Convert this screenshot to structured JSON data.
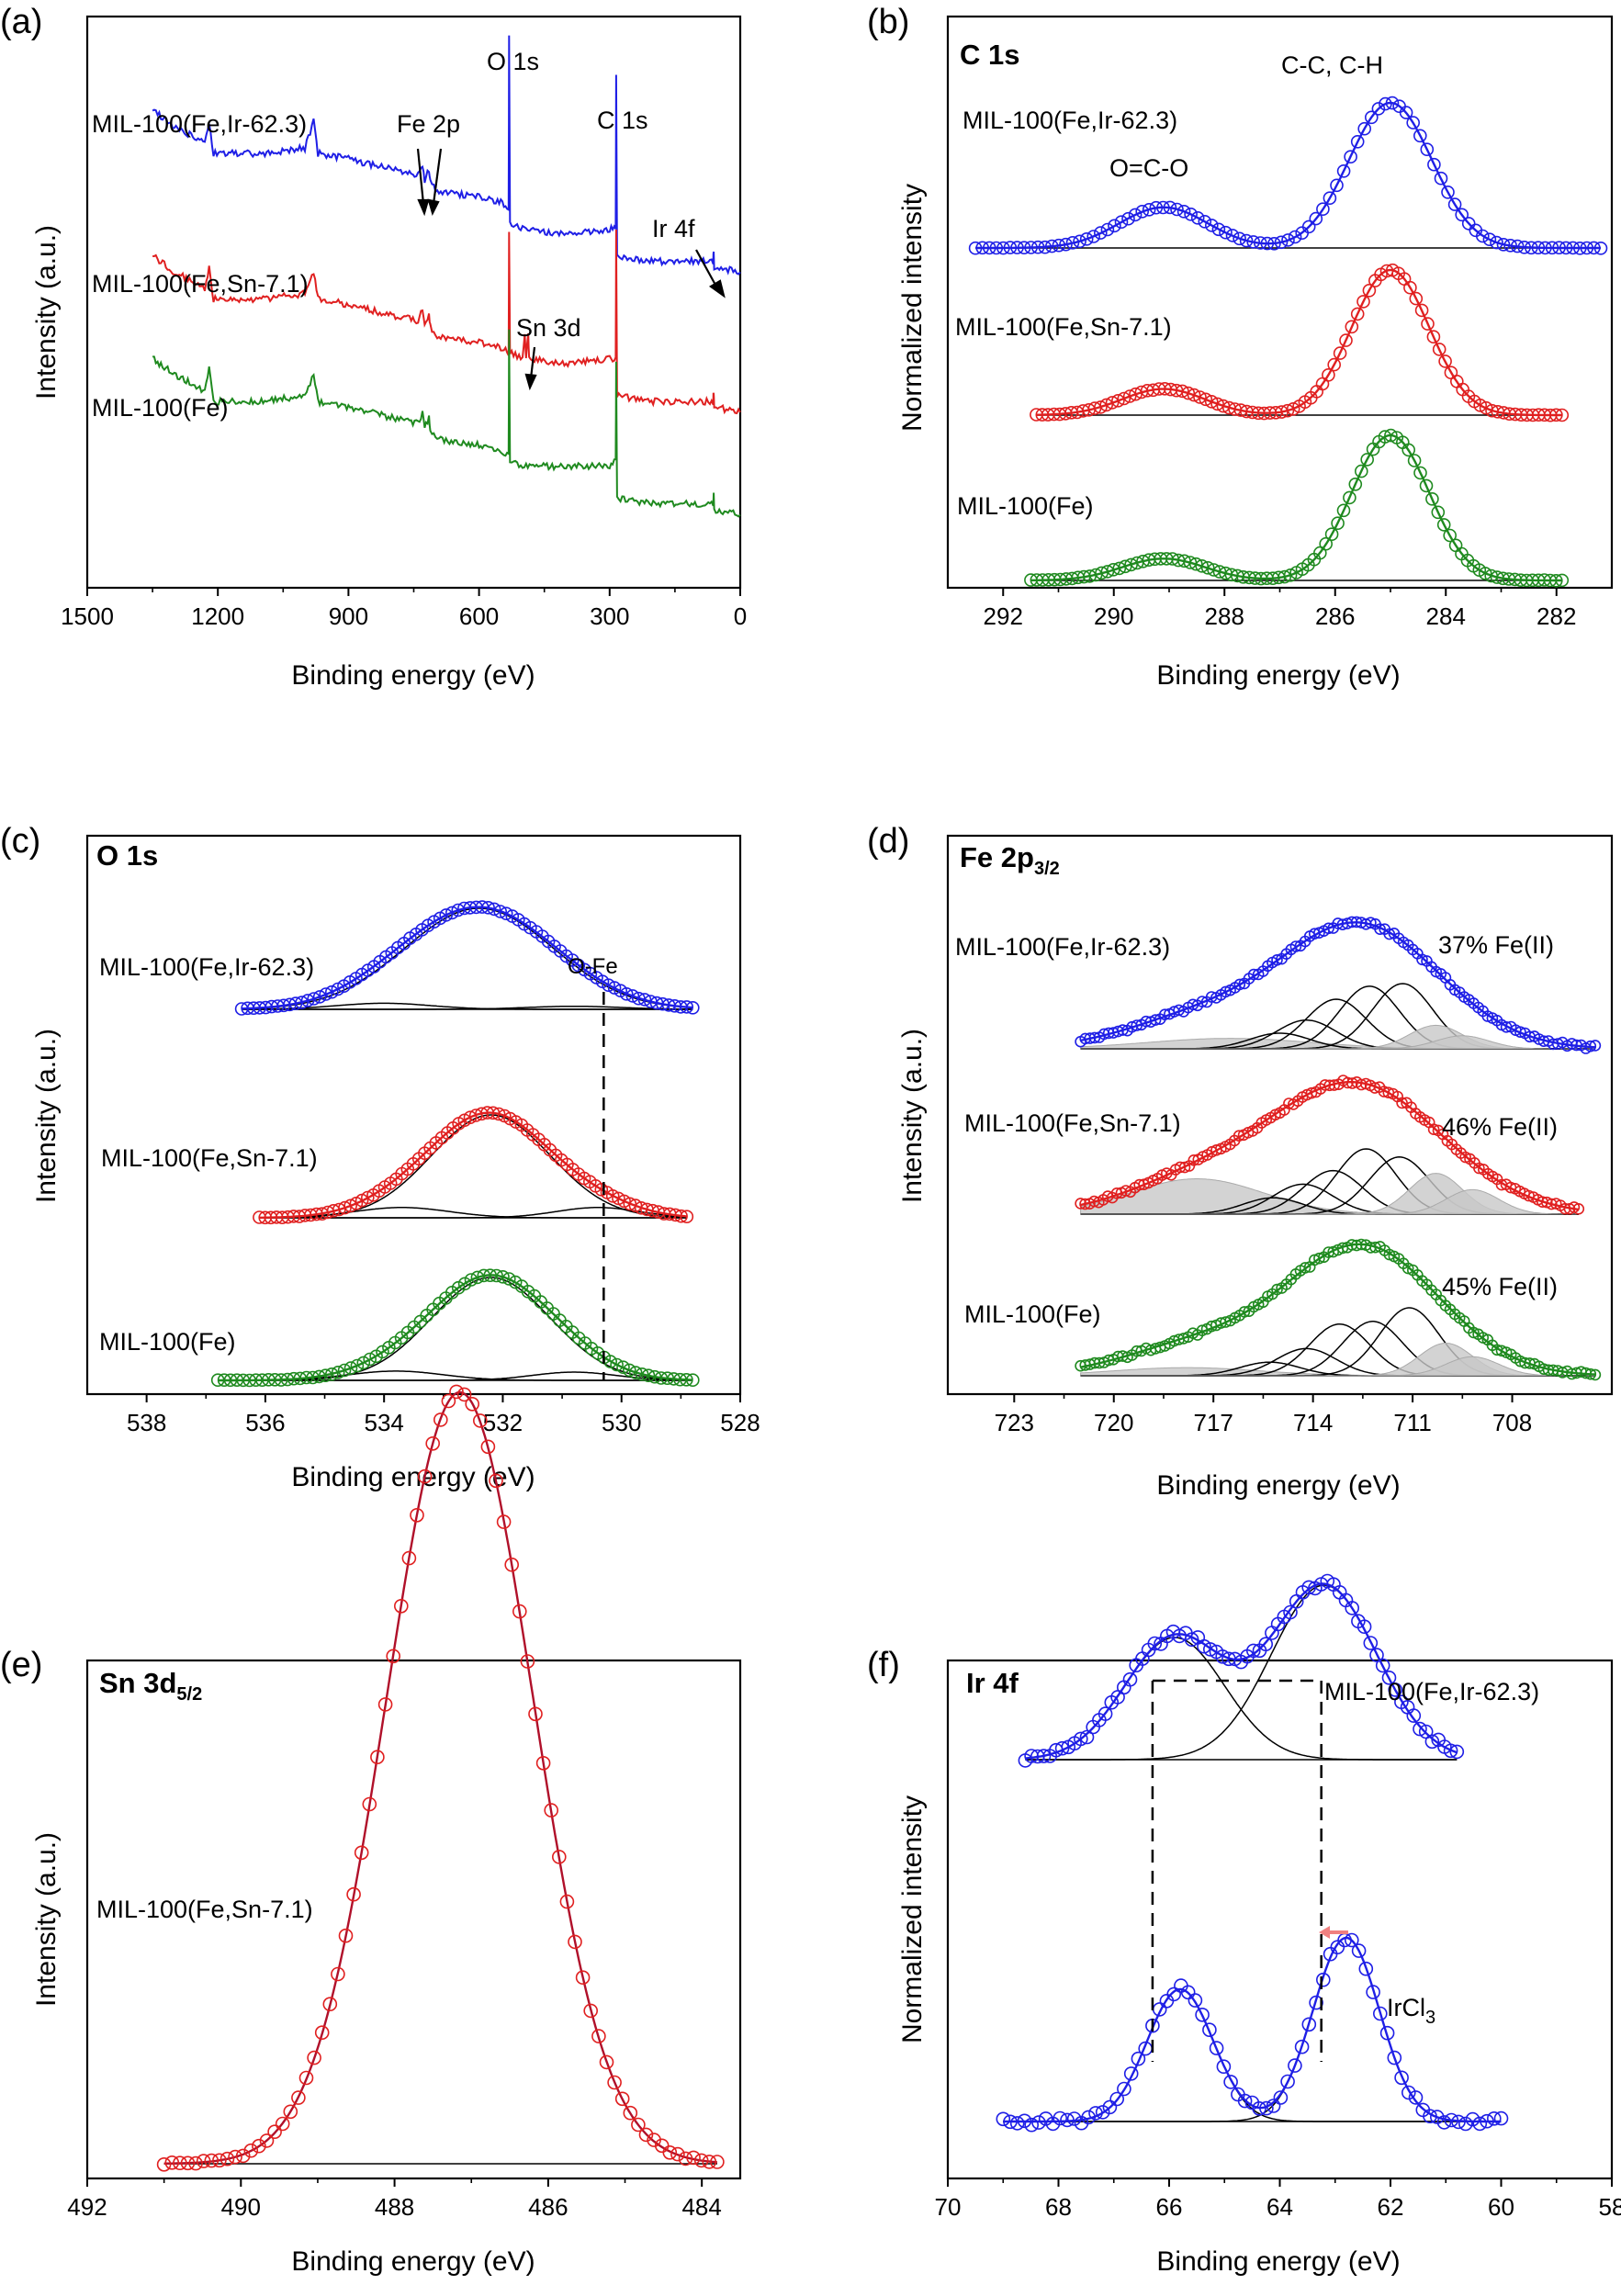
{
  "figure": {
    "colors": {
      "blue": "#1f1fe6",
      "red": "#e02020",
      "green": "#1f8a1f",
      "black": "#000000",
      "darkred": "#b0102a",
      "fit_gray": "#c8c8c8",
      "arrow_salmon": "#f08080"
    }
  },
  "chart_data": [
    {
      "panel": "(a)",
      "type": "line",
      "xlabel": "Binding energy (eV)",
      "ylabel": "Intensity (a.u.)",
      "xlim": [
        1500,
        0
      ],
      "x_reversed": true,
      "xticks": [
        "1500",
        "1200",
        "900",
        "600",
        "300",
        "0"
      ],
      "series": [
        {
          "name": "MIL-100(Fe,Ir-62.3)",
          "color": "#1f1fe6",
          "points": [
            [
              1350,
              0.86
            ],
            [
              1300,
              0.83
            ],
            [
              1230,
              0.8
            ],
            [
              1220,
              0.84
            ],
            [
              1210,
              0.78
            ],
            [
              1100,
              0.78
            ],
            [
              1000,
              0.79
            ],
            [
              980,
              0.84
            ],
            [
              970,
              0.78
            ],
            [
              900,
              0.77
            ],
            [
              800,
              0.75
            ],
            [
              740,
              0.74
            ],
            [
              730,
              0.76
            ],
            [
              725,
              0.73
            ],
            [
              715,
              0.75
            ],
            [
              712,
              0.73
            ],
            [
              700,
              0.71
            ],
            [
              600,
              0.7
            ],
            [
              550,
              0.69
            ],
            [
              532,
              0.68
            ],
            [
              531,
              1.0
            ],
            [
              529,
              0.65
            ],
            [
              500,
              0.64
            ],
            [
              400,
              0.63
            ],
            [
              300,
              0.64
            ],
            [
              286,
              0.64
            ],
            [
              285,
              0.93
            ],
            [
              283,
              0.59
            ],
            [
              200,
              0.58
            ],
            [
              100,
              0.58
            ],
            [
              62,
              0.58
            ],
            [
              61,
              0.6
            ],
            [
              60,
              0.57
            ],
            [
              0,
              0.56
            ]
          ]
        },
        {
          "name": "MIL-100(Fe,Sn-7.1)",
          "color": "#e02020",
          "points": [
            [
              1350,
              0.59
            ],
            [
              1300,
              0.56
            ],
            [
              1230,
              0.53
            ],
            [
              1220,
              0.57
            ],
            [
              1210,
              0.51
            ],
            [
              1100,
              0.51
            ],
            [
              1000,
              0.52
            ],
            [
              980,
              0.56
            ],
            [
              970,
              0.51
            ],
            [
              900,
              0.5
            ],
            [
              800,
              0.48
            ],
            [
              740,
              0.47
            ],
            [
              730,
              0.49
            ],
            [
              725,
              0.46
            ],
            [
              715,
              0.48
            ],
            [
              712,
              0.46
            ],
            [
              700,
              0.44
            ],
            [
              600,
              0.43
            ],
            [
              550,
              0.42
            ],
            [
              532,
              0.41
            ],
            [
              531,
              0.64
            ],
            [
              529,
              0.41
            ],
            [
              500,
              0.4
            ],
            [
              495,
              0.44
            ],
            [
              492,
              0.4
            ],
            [
              487,
              0.45
            ],
            [
              485,
              0.4
            ],
            [
              400,
              0.39
            ],
            [
              300,
              0.4
            ],
            [
              286,
              0.4
            ],
            [
              285,
              0.64
            ],
            [
              283,
              0.33
            ],
            [
              200,
              0.32
            ],
            [
              100,
              0.32
            ],
            [
              62,
              0.32
            ],
            [
              61,
              0.34
            ],
            [
              60,
              0.31
            ],
            [
              0,
              0.3
            ]
          ]
        },
        {
          "name": "MIL-100(Fe)",
          "color": "#1f8a1f",
          "points": [
            [
              1350,
              0.4
            ],
            [
              1300,
              0.37
            ],
            [
              1230,
              0.34
            ],
            [
              1220,
              0.38
            ],
            [
              1210,
              0.32
            ],
            [
              1100,
              0.32
            ],
            [
              1000,
              0.33
            ],
            [
              980,
              0.37
            ],
            [
              970,
              0.32
            ],
            [
              900,
              0.31
            ],
            [
              800,
              0.29
            ],
            [
              740,
              0.28
            ],
            [
              730,
              0.3
            ],
            [
              725,
              0.27
            ],
            [
              715,
              0.29
            ],
            [
              712,
              0.27
            ],
            [
              700,
              0.25
            ],
            [
              600,
              0.24
            ],
            [
              550,
              0.23
            ],
            [
              532,
              0.22
            ],
            [
              531,
              0.45
            ],
            [
              529,
              0.21
            ],
            [
              500,
              0.2
            ],
            [
              400,
              0.2
            ],
            [
              300,
              0.2
            ],
            [
              286,
              0.21
            ],
            [
              285,
              0.39
            ],
            [
              283,
              0.14
            ],
            [
              200,
              0.13
            ],
            [
              100,
              0.13
            ],
            [
              62,
              0.13
            ],
            [
              61,
              0.15
            ],
            [
              60,
              0.12
            ],
            [
              0,
              0.11
            ]
          ]
        }
      ],
      "labels": [
        "MIL-100(Fe,Ir-62.3)",
        "MIL-100(Fe,Sn-7.1)",
        "MIL-100(Fe)"
      ],
      "annotations": [
        "O 1s",
        "C 1s",
        "Fe 2p",
        "Ir 4f",
        "Sn 3d"
      ]
    },
    {
      "panel": "(b)",
      "type": "scatter",
      "title": "C 1s",
      "xlabel": "Binding energy (eV)",
      "ylabel": "Normalized intensity",
      "xlim": [
        293,
        281
      ],
      "x_reversed": true,
      "xticks": [
        "292",
        "290",
        "288",
        "286",
        "284",
        "282"
      ],
      "peaks_eV": [
        {
          "label": "O=C-O",
          "x": 289.1
        },
        {
          "label": "C-C, C-H",
          "x": 285.0
        }
      ],
      "series": [
        {
          "name": "MIL-100(Fe,Ir-62.3)",
          "color": "#1f1fe6",
          "x_range": [
            292.5,
            281.2
          ],
          "peaks": [
            [
              289.1,
              0.28,
              0.8
            ],
            [
              285.0,
              1.0,
              0.75
            ]
          ]
        },
        {
          "name": "MIL-100(Fe,Sn-7.1)",
          "color": "#e02020",
          "x_range": [
            291.4,
            281.9
          ],
          "peaks": [
            [
              289.1,
              0.18,
              0.75
            ],
            [
              285.0,
              1.0,
              0.7
            ]
          ]
        },
        {
          "name": "MIL-100(Fe)",
          "color": "#1f8a1f",
          "x_range": [
            291.5,
            281.9
          ],
          "peaks": [
            [
              289.1,
              0.15,
              0.75
            ],
            [
              285.0,
              1.0,
              0.7
            ]
          ]
        }
      ],
      "annotations": [
        "C-C, C-H",
        "O=C-O"
      ]
    },
    {
      "panel": "(c)",
      "type": "scatter",
      "title": "O 1s",
      "xlabel": "Binding energy (eV)",
      "ylabel": "Intensity (a.u.)",
      "xlim": [
        539,
        528
      ],
      "x_reversed": true,
      "xticks": [
        "538",
        "536",
        "534",
        "532",
        "530",
        "528"
      ],
      "reference_line_eV": 530.3,
      "series": [
        {
          "name": "MIL-100(Fe,Ir-62.3)",
          "color": "#1f1fe6",
          "x_range": [
            536.4,
            528.8
          ],
          "peaks": [
            [
              532.4,
              1.0,
              1.25
            ],
            [
              534.0,
              0.06,
              0.8
            ],
            [
              530.8,
              0.03,
              0.8
            ]
          ]
        },
        {
          "name": "MIL-100(Fe,Sn-7.1)",
          "color": "#e02020",
          "x_range": [
            536.1,
            528.9
          ],
          "peaks": [
            [
              532.2,
              1.0,
              1.0
            ],
            [
              533.7,
              0.1,
              0.8
            ],
            [
              530.4,
              0.1,
              0.7
            ]
          ]
        },
        {
          "name": "MIL-100(Fe)",
          "color": "#1f8a1f",
          "x_range": [
            536.8,
            528.8
          ],
          "peaks": [
            [
              532.2,
              1.0,
              1.0
            ],
            [
              533.8,
              0.09,
              0.8
            ],
            [
              530.8,
              0.08,
              0.7
            ]
          ]
        }
      ],
      "annotations": [
        "O-Fe"
      ]
    },
    {
      "panel": "(d)",
      "type": "scatter",
      "title": "Fe 2p",
      "title_sub": "3/2",
      "xlabel": "Binding energy (eV)",
      "ylabel": "Intensity (a.u.)",
      "xlim": [
        725,
        705
      ],
      "x_reversed": true,
      "xticks": [
        "723",
        "720",
        "717",
        "714",
        "711",
        "708"
      ],
      "series": [
        {
          "name": "MIL-100(Fe,Ir-62.3)",
          "color": "#1f1fe6",
          "fe2": "37% Fe(II)",
          "x_range": [
            721,
            705.5
          ],
          "peaks": [
            [
              716.5,
              0.08,
              2.5
            ],
            [
              715.0,
              0.12,
              0.9
            ],
            [
              714.2,
              0.22,
              0.9
            ],
            [
              713.3,
              0.38,
              0.9
            ],
            [
              712.3,
              0.48,
              0.9
            ],
            [
              711.3,
              0.5,
              0.9
            ],
            [
              710.3,
              0.18,
              0.8
            ],
            [
              709.5,
              0.1,
              0.8
            ]
          ],
          "fit_width": 2.4
        },
        {
          "name": "MIL-100(Fe,Sn-7.1)",
          "color": "#e02020",
          "fe2": "46% Fe(II)",
          "x_range": [
            721,
            706
          ],
          "peaks": [
            [
              717.5,
              0.26,
              2.0
            ],
            [
              715.2,
              0.12,
              0.9
            ],
            [
              714.3,
              0.22,
              0.9
            ],
            [
              713.4,
              0.32,
              0.9
            ],
            [
              712.4,
              0.48,
              0.9
            ],
            [
              711.4,
              0.42,
              0.9
            ],
            [
              710.3,
              0.3,
              0.8
            ],
            [
              709.2,
              0.18,
              0.8
            ]
          ],
          "fit_width": 2.6
        },
        {
          "name": "MIL-100(Fe)",
          "color": "#1f8a1f",
          "fe2": "45% Fe(II)",
          "x_range": [
            721,
            705.5
          ],
          "peaks": [
            [
              717.8,
              0.06,
              2.2
            ],
            [
              715.3,
              0.1,
              0.9
            ],
            [
              714.2,
              0.2,
              0.9
            ],
            [
              713.2,
              0.38,
              0.9
            ],
            [
              712.2,
              0.4,
              0.9
            ],
            [
              711.1,
              0.5,
              0.9
            ],
            [
              710.0,
              0.24,
              0.8
            ],
            [
              709.2,
              0.14,
              0.8
            ]
          ],
          "fit_width": 2.3
        }
      ]
    },
    {
      "panel": "(e)",
      "type": "scatter",
      "title": "Sn 3d",
      "title_sub": "5/2",
      "xlabel": "Binding energy (eV)",
      "ylabel": "Intensity (a.u.)",
      "xlim": [
        492,
        483.5
      ],
      "x_reversed": true,
      "xticks": [
        "492",
        "490",
        "488",
        "486",
        "484"
      ],
      "series": [
        {
          "name": "MIL-100(Fe,Sn-7.1)",
          "color": "#e02020",
          "fit_color": "#b0102a",
          "x_range": [
            491.0,
            483.8
          ],
          "peaks": [
            [
              487.15,
              1.0,
              0.95
            ]
          ]
        }
      ]
    },
    {
      "panel": "(f)",
      "type": "scatter",
      "title": "Ir 4f",
      "xlabel": "Binding energy (eV)",
      "ylabel": "Normalized intensity",
      "xlim": [
        70,
        58
      ],
      "x_reversed": true,
      "xticks": [
        "70",
        "68",
        "66",
        "64",
        "62",
        "60",
        "58"
      ],
      "reference_lines_eV": [
        66.3,
        63.25
      ],
      "series": [
        {
          "name": "MIL-100(Fe,Ir-62.3)",
          "color": "#1f1fe6",
          "x_range": [
            68.6,
            60.8
          ],
          "peaks": [
            [
              65.9,
              0.7,
              0.9
            ],
            [
              63.2,
              1.0,
              0.95
            ]
          ]
        },
        {
          "name": "IrCl3",
          "color": "#1f1fe6",
          "x_range": [
            69.0,
            60.0
          ],
          "peaks": [
            [
              65.8,
              0.72,
              0.6
            ],
            [
              62.8,
              1.0,
              0.6
            ]
          ]
        }
      ]
    }
  ],
  "text": {
    "a": {
      "letter": "(a)",
      "xlabel": "Binding energy (eV)",
      "ylabel": "Intensity (a.u.)",
      "lbl_ir": "MIL-100(Fe,Ir-62.3)",
      "lbl_sn": "MIL-100(Fe,Sn-7.1)",
      "lbl_fe": "MIL-100(Fe)",
      "o1s": "O 1s",
      "c1s": "C 1s",
      "fe2p": "Fe 2p",
      "ir4f": "Ir 4f",
      "sn3d": "Sn 3d"
    },
    "b": {
      "letter": "(b)",
      "title": "C 1s",
      "xlabel": "Binding energy (eV)",
      "ylabel": "Normalized intensity",
      "lbl_ir": "MIL-100(Fe,Ir-62.3)",
      "lbl_sn": "MIL-100(Fe,Sn-7.1)",
      "lbl_fe": "MIL-100(Fe)",
      "occ": "O=C-O",
      "cc": "C-C, C-H"
    },
    "c": {
      "letter": "(c)",
      "title": "O 1s",
      "xlabel": "Binding energy (eV)",
      "ylabel": "Intensity (a.u.)",
      "lbl_ir": "MIL-100(Fe,Ir-62.3)",
      "lbl_sn": "MIL-100(Fe,Sn-7.1)",
      "lbl_fe": "MIL-100(Fe)",
      "ofe": "O-Fe"
    },
    "d": {
      "letter": "(d)",
      "title": "Fe 2p",
      "title_sub": "3/2",
      "xlabel": "Binding energy (eV)",
      "ylabel": "Intensity (a.u.)",
      "lbl_ir": "MIL-100(Fe,Ir-62.3)",
      "lbl_sn": "MIL-100(Fe,Sn-7.1)",
      "lbl_fe": "MIL-100(Fe)",
      "fe2_ir": "37% Fe(II)",
      "fe2_sn": "46% Fe(II)",
      "fe2_fe": "45% Fe(II)"
    },
    "e": {
      "letter": "(e)",
      "title": "Sn 3d",
      "title_sub": "5/2",
      "xlabel": "Binding energy (eV)",
      "ylabel": "Intensity (a.u.)",
      "lbl_sn": "MIL-100(Fe,Sn-7.1)"
    },
    "f": {
      "letter": "(f)",
      "title": "Ir 4f",
      "xlabel": "Binding energy (eV)",
      "ylabel": "Normalized intensity",
      "lbl_ir": "MIL-100(Fe,Ir-62.3)",
      "lbl_ircl": "IrCl",
      "lbl_ircl_sub": "3"
    }
  }
}
